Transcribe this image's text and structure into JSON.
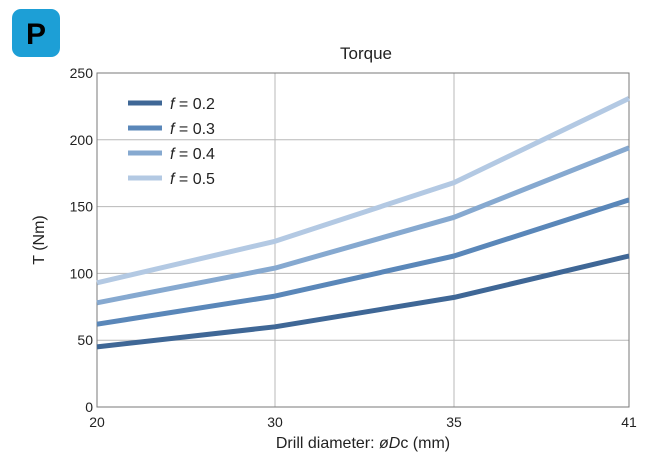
{
  "badge": {
    "letter": "P",
    "color": "#1d9fd6"
  },
  "chart_data": {
    "type": "line",
    "title": "Torque",
    "xlabel_prefix": "Drill diameter: ",
    "xlabel_sym": "ø",
    "xlabel_var": "D",
    "xlabel_suffix": "c (mm)",
    "ylabel": "T (Nm)",
    "x_categories": [
      "20",
      "30",
      "35",
      "41"
    ],
    "yticks": [
      0,
      50,
      100,
      150,
      200,
      250
    ],
    "ylim": [
      0,
      250
    ],
    "grid": true,
    "legend_position": "top-left",
    "series": [
      {
        "var": "f",
        "eq": " = 0.2",
        "color": "#3f6796",
        "values": [
          45,
          60,
          82,
          113
        ]
      },
      {
        "var": "f",
        "eq": " = 0.3",
        "color": "#5a87b9",
        "values": [
          62,
          83,
          113,
          155
        ]
      },
      {
        "var": "f",
        "eq": " = 0.4",
        "color": "#86a9d0",
        "values": [
          78,
          104,
          142,
          194
        ]
      },
      {
        "var": "f",
        "eq": " = 0.5",
        "color": "#b3c9e3",
        "values": [
          93,
          124,
          168,
          231
        ]
      }
    ]
  }
}
